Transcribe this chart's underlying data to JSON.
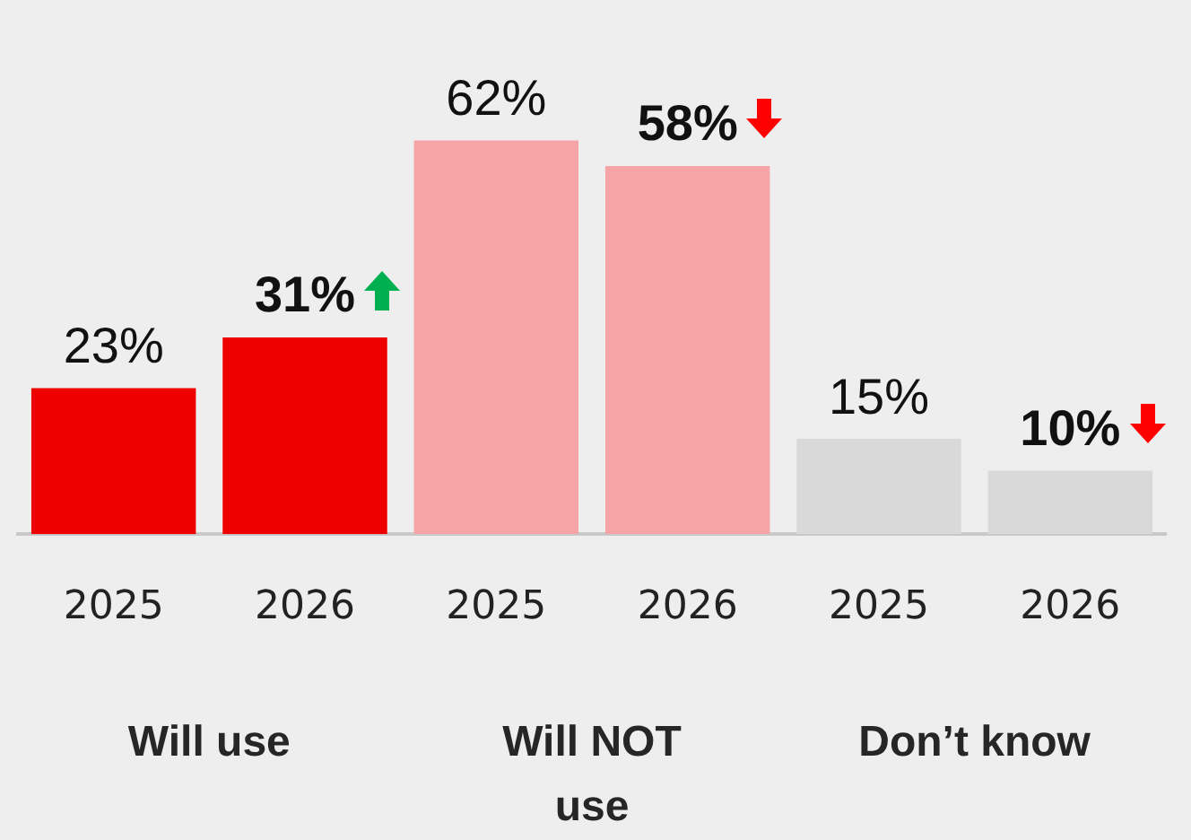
{
  "chart_data": {
    "type": "bar",
    "categories": [
      "2025",
      "2026",
      "2025",
      "2026",
      "2025",
      "2026"
    ],
    "values": [
      23,
      31,
      62,
      58,
      15,
      10
    ],
    "value_labels": [
      "23%",
      "31%",
      "62%",
      "58%",
      "15%",
      "10%"
    ],
    "colors": [
      "#ee0000",
      "#ee0000",
      "#f7a4a7",
      "#f7a4a7",
      "#d9d9d9",
      "#d9d9d9"
    ],
    "tick_labels": "x",
    "grid": false,
    "legend": false,
    "annotations": [
      "Will use",
      "Will NOT use",
      "Don’t know"
    ]
  }
}
